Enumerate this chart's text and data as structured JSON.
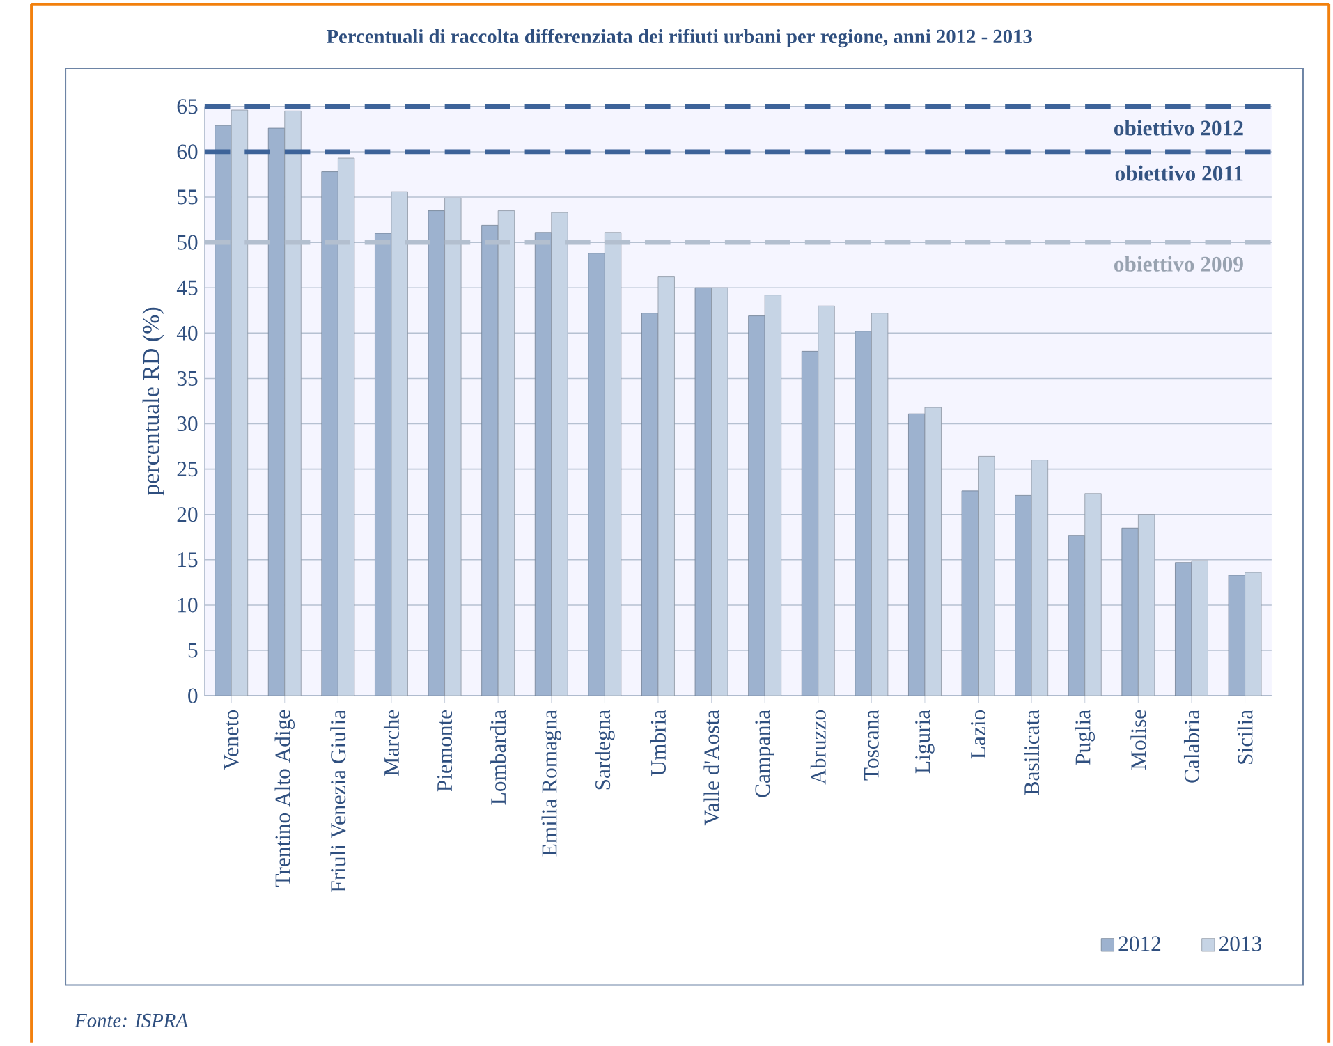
{
  "chart_data": {
    "type": "bar",
    "title": "Percentuali di raccolta differenziata dei rifiuti urbani per regione, anni 2012 - 2013",
    "ylabel": "percentuale RD (%)",
    "categories": [
      "Veneto",
      "Trentino Alto Adige",
      "Friuli Venezia Giulia",
      "Marche",
      "Piemonte",
      "Lombardia",
      "Emilia Romagna",
      "Sardegna",
      "Umbria",
      "Valle d'Aosta",
      "Campania",
      "Abruzzo",
      "Toscana",
      "Liguria",
      "Lazio",
      "Basilicata",
      "Puglia",
      "Molise",
      "Calabria",
      "Sicilia"
    ],
    "series": [
      {
        "name": "2012",
        "color": "#9db2cf",
        "values": [
          62.9,
          62.6,
          57.8,
          51.0,
          53.5,
          51.9,
          51.1,
          48.8,
          42.2,
          45.0,
          41.9,
          38.0,
          40.2,
          31.1,
          22.6,
          22.1,
          17.7,
          18.5,
          14.7,
          13.3
        ]
      },
      {
        "name": "2013",
        "color": "#c6d4e5",
        "values": [
          64.6,
          64.5,
          59.3,
          55.6,
          54.9,
          53.5,
          53.3,
          51.1,
          46.2,
          45.0,
          44.2,
          43.0,
          42.2,
          31.8,
          26.4,
          26.0,
          22.3,
          20.0,
          14.9,
          13.6
        ]
      }
    ],
    "ylim": [
      0,
      65
    ],
    "yticks": [
      0,
      5,
      10,
      15,
      20,
      25,
      30,
      35,
      40,
      45,
      50,
      55,
      60,
      65
    ],
    "grid": "y",
    "legend": "bottom right",
    "ref_lines": [
      {
        "axis": "y",
        "value": 65,
        "label": "obiettivo 2012",
        "color": "#3d6399",
        "line_style": "dashed"
      },
      {
        "axis": "y",
        "value": 60,
        "label": "obiettivo 2011",
        "color": "#3d6399",
        "line_style": "dashed"
      },
      {
        "axis": "y",
        "value": 50,
        "label": "obiettivo 2009",
        "color": "#b3bfcf",
        "line_style": "dashed"
      }
    ],
    "annotations": [
      "Fonte: ISPRA"
    ]
  }
}
